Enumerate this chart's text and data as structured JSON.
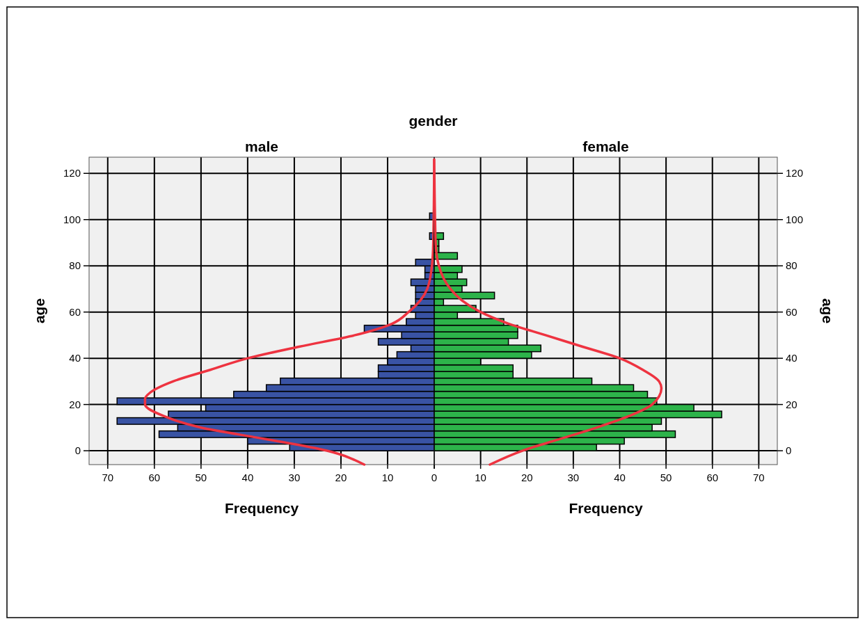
{
  "chart_data": [
    {
      "type": "histogram",
      "orientation": "horizontal",
      "title": "male",
      "annotations": [
        "gender"
      ],
      "xlabel": "Frequency",
      "ylabel": "age",
      "bins": [
        0,
        2.86,
        5.71,
        8.57,
        11.43,
        14.29,
        17.14,
        20,
        22.86,
        25.71,
        28.57,
        31.43,
        34.29,
        37.14,
        40,
        42.86,
        45.71,
        48.57,
        51.43,
        54.29,
        57.14,
        60,
        62.86,
        65.71,
        68.57,
        71.43,
        74.29,
        77.14,
        80,
        82.86,
        85.71,
        88.57,
        91.43,
        94.29,
        97.14,
        100,
        102.86
      ],
      "series": [
        {
          "color": "#3953a4",
          "values": [
            31,
            40,
            59,
            55,
            68,
            57,
            49,
            68,
            43,
            36,
            33,
            12,
            12,
            10,
            8,
            5,
            12,
            7,
            15,
            6,
            4,
            5,
            4,
            4,
            4,
            5,
            2,
            2,
            4,
            0,
            0,
            0,
            1,
            0,
            0,
            1
          ]
        },
        {
          "type": "line",
          "color": "#ee3340",
          "x": [
            -6,
            0,
            5,
            10,
            15,
            20,
            22.5,
            25,
            30,
            35,
            40,
            45,
            50,
            55,
            60,
            65,
            70,
            80,
            90,
            126
          ],
          "values": [
            15,
            23,
            36,
            50,
            58,
            62,
            62,
            61,
            56,
            48,
            40,
            29,
            17,
            9,
            5.5,
            3,
            1.5,
            0.5,
            0.2,
            0
          ]
        }
      ],
      "xlim": [
        74,
        0
      ],
      "xticks": [
        0,
        10,
        20,
        30,
        40,
        50,
        60,
        70
      ],
      "ylim": [
        -6,
        127
      ],
      "yticks": [
        0,
        20,
        40,
        60,
        80,
        100,
        120
      ],
      "grid": true
    },
    {
      "type": "histogram",
      "orientation": "horizontal",
      "title": "female",
      "xlabel": "Frequency",
      "ylabel": "age",
      "bins": [
        0,
        2.86,
        5.71,
        8.57,
        11.43,
        14.29,
        17.14,
        20,
        22.86,
        25.71,
        28.57,
        31.43,
        34.29,
        37.14,
        40,
        42.86,
        45.71,
        48.57,
        51.43,
        54.29,
        57.14,
        60,
        62.86,
        65.71,
        68.57,
        71.43,
        74.29,
        77.14,
        80,
        82.86,
        85.71,
        88.57,
        91.43,
        94.29,
        97.14,
        100,
        102.86
      ],
      "series": [
        {
          "color": "#2db34a",
          "values": [
            35,
            41,
            52,
            47,
            49,
            62,
            56,
            48,
            46,
            43,
            34,
            17,
            17,
            10,
            21,
            23,
            16,
            18,
            18,
            15,
            5,
            9,
            2,
            13,
            6,
            7,
            5,
            6,
            0,
            5,
            1,
            1,
            2,
            0,
            0,
            0
          ]
        },
        {
          "type": "line",
          "color": "#ee3340",
          "x": [
            -6,
            0,
            5,
            10,
            15,
            20,
            27,
            30,
            35,
            40,
            45,
            50,
            55,
            60,
            65,
            70,
            80,
            90,
            126
          ],
          "values": [
            12,
            19,
            27,
            35,
            42,
            47,
            49,
            48.5,
            45,
            40,
            32,
            24,
            16,
            10,
            6,
            3.5,
            1,
            0.3,
            0
          ]
        }
      ],
      "xlim": [
        0,
        74
      ],
      "xticks": [
        {
          "value": 0,
          "label": null
        },
        10,
        20,
        30,
        40,
        50,
        60,
        70
      ],
      "ylim": [
        -6,
        127
      ],
      "yticks": [
        0,
        20,
        40,
        60,
        80,
        100,
        120
      ],
      "grid": true
    }
  ]
}
